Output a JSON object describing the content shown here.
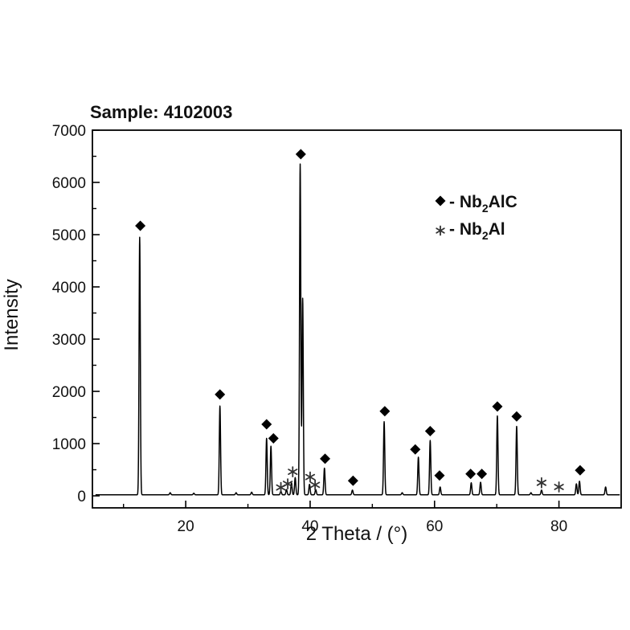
{
  "chart_data": {
    "type": "line",
    "title": "Sample: 4102003",
    "xlabel": "2 Theta / (°)",
    "ylabel": "Intensity",
    "xlim": [
      5,
      90
    ],
    "ylim": [
      -230,
      7000
    ],
    "xticks": [
      20,
      40,
      60,
      80
    ],
    "yticks": [
      0,
      1000,
      2000,
      3000,
      4000,
      5000,
      6000,
      7000
    ],
    "baseline": 20,
    "peaks": [
      {
        "x": 12.6,
        "y": 4950
      },
      {
        "x": 17.5,
        "y": 60
      },
      {
        "x": 21.3,
        "y": 50
      },
      {
        "x": 25.5,
        "y": 1720
      },
      {
        "x": 28.1,
        "y": 60
      },
      {
        "x": 30.6,
        "y": 70
      },
      {
        "x": 33.0,
        "y": 1100
      },
      {
        "x": 33.7,
        "y": 950
      },
      {
        "x": 35.3,
        "y": 90
      },
      {
        "x": 36.2,
        "y": 120
      },
      {
        "x": 37.0,
        "y": 250
      },
      {
        "x": 37.6,
        "y": 350
      },
      {
        "x": 38.4,
        "y": 6350
      },
      {
        "x": 38.8,
        "y": 3780
      },
      {
        "x": 39.9,
        "y": 220
      },
      {
        "x": 40.9,
        "y": 120
      },
      {
        "x": 42.3,
        "y": 530
      },
      {
        "x": 46.8,
        "y": 110
      },
      {
        "x": 51.9,
        "y": 1420
      },
      {
        "x": 54.8,
        "y": 60
      },
      {
        "x": 57.4,
        "y": 740
      },
      {
        "x": 59.3,
        "y": 1060
      },
      {
        "x": 60.9,
        "y": 170
      },
      {
        "x": 65.9,
        "y": 250
      },
      {
        "x": 67.4,
        "y": 260
      },
      {
        "x": 70.1,
        "y": 1530
      },
      {
        "x": 73.2,
        "y": 1330
      },
      {
        "x": 75.5,
        "y": 60
      },
      {
        "x": 77.2,
        "y": 110
      },
      {
        "x": 82.8,
        "y": 230
      },
      {
        "x": 83.3,
        "y": 280
      },
      {
        "x": 87.5,
        "y": 170
      }
    ],
    "markers": [
      {
        "type": "diamond",
        "x": 12.7,
        "y": 5170
      },
      {
        "type": "diamond",
        "x": 25.5,
        "y": 1940
      },
      {
        "type": "diamond",
        "x": 33.0,
        "y": 1370
      },
      {
        "type": "diamond",
        "x": 34.1,
        "y": 1100
      },
      {
        "type": "diamond",
        "x": 38.5,
        "y": 6540
      },
      {
        "type": "diamond",
        "x": 42.4,
        "y": 710
      },
      {
        "type": "diamond",
        "x": 46.9,
        "y": 290
      },
      {
        "type": "diamond",
        "x": 52.0,
        "y": 1620
      },
      {
        "type": "diamond",
        "x": 56.9,
        "y": 890
      },
      {
        "type": "diamond",
        "x": 59.3,
        "y": 1240
      },
      {
        "type": "diamond",
        "x": 60.8,
        "y": 390
      },
      {
        "type": "diamond",
        "x": 65.8,
        "y": 420
      },
      {
        "type": "diamond",
        "x": 67.6,
        "y": 420
      },
      {
        "type": "diamond",
        "x": 70.1,
        "y": 1710
      },
      {
        "type": "diamond",
        "x": 73.2,
        "y": 1520
      },
      {
        "type": "diamond",
        "x": 83.4,
        "y": 490
      },
      {
        "type": "star",
        "x": 35.3,
        "y": 160
      },
      {
        "type": "star",
        "x": 36.4,
        "y": 230
      },
      {
        "type": "star",
        "x": 37.2,
        "y": 460
      },
      {
        "type": "star",
        "x": 40.0,
        "y": 360
      },
      {
        "type": "star",
        "x": 40.8,
        "y": 210
      },
      {
        "type": "star",
        "x": 77.2,
        "y": 250
      },
      {
        "type": "star",
        "x": 80.0,
        "y": 170
      }
    ],
    "legend": {
      "position": "top-right",
      "entries": [
        {
          "symbol": "diamond",
          "prefix": "- Nb",
          "sub": "2",
          "suffix": "AlC"
        },
        {
          "symbol": "star",
          "prefix": "- Nb",
          "sub": "2",
          "suffix": "Al"
        }
      ]
    },
    "colors": {
      "line": "#000000",
      "marker": "#000000",
      "star": "#333333"
    }
  }
}
